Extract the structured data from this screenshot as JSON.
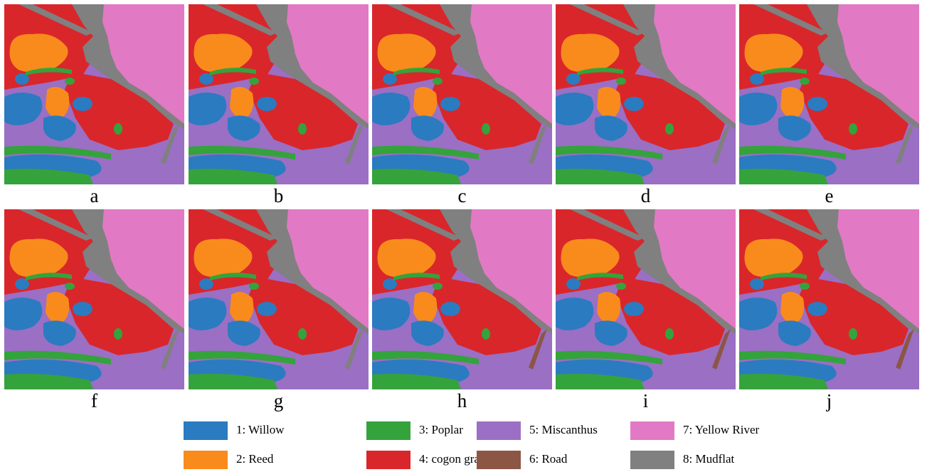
{
  "colors": {
    "willow": "#2b7bc0",
    "reed": "#f98b1c",
    "poplar": "#34a33c",
    "cogon": "#d9262b",
    "miscanthus": "#9a6fc4",
    "road": "#8c5645",
    "river": "#e279c4",
    "mudflat": "#808080"
  },
  "panels": [
    {
      "id": "a",
      "label": "a"
    },
    {
      "id": "b",
      "label": "b"
    },
    {
      "id": "c",
      "label": "c"
    },
    {
      "id": "d",
      "label": "d"
    },
    {
      "id": "e",
      "label": "e"
    },
    {
      "id": "f",
      "label": "f"
    },
    {
      "id": "g",
      "label": "g"
    },
    {
      "id": "h",
      "label": "h"
    },
    {
      "id": "i",
      "label": "i"
    },
    {
      "id": "j",
      "label": "j"
    }
  ],
  "legend": [
    {
      "label": "1: Willow",
      "color": "#2b7bc0"
    },
    {
      "label": "3: Poplar",
      "color": "#34a33c"
    },
    {
      "label": "5: Miscanthus",
      "color": "#9a6fc4"
    },
    {
      "label": "7: Yellow River",
      "color": "#e279c4"
    },
    {
      "label": "2: Reed",
      "color": "#f98b1c"
    },
    {
      "label": "4: cogon grass",
      "color": "#d9262b"
    },
    {
      "label": "6: Road",
      "color": "#8c5645"
    },
    {
      "label": "8: Mudflat",
      "color": "#808080"
    }
  ]
}
